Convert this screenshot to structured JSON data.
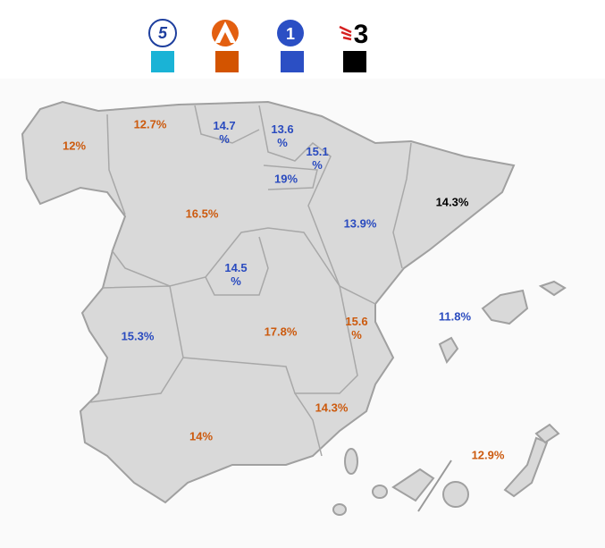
{
  "legend": {
    "items": [
      {
        "logo": "5",
        "color": "#1ab3d6"
      },
      {
        "color": "#d35400"
      },
      {
        "logo": "1",
        "color": "#2b4fc4"
      },
      {
        "logo": "3",
        "color": "#000000"
      }
    ]
  },
  "regions": [
    {
      "label": "12%",
      "color": "#cc5a0e"
    },
    {
      "label": "12.7%",
      "color": "#cc5a0e"
    },
    {
      "label": "14.7 %",
      "color": "#2a4bbf"
    },
    {
      "label": "13.6 %",
      "color": "#2a4bbf"
    },
    {
      "label": "15.1 %",
      "color": "#2a4bbf"
    },
    {
      "label": "19%",
      "color": "#2a4bbf"
    },
    {
      "label": "13.9%",
      "color": "#2a4bbf"
    },
    {
      "label": "14.3%",
      "color": "#000000"
    },
    {
      "label": "16.5%",
      "color": "#cc5a0e"
    },
    {
      "label": "14.5 %",
      "color": "#2a4bbf"
    },
    {
      "label": "15.3%",
      "color": "#2a4bbf"
    },
    {
      "label": "17.8%",
      "color": "#cc5a0e"
    },
    {
      "label": "15.6 %",
      "color": "#cc5a0e"
    },
    {
      "label": "11.8%",
      "color": "#2a4bbf"
    },
    {
      "label": "14.3%",
      "color": "#cc5a0e"
    },
    {
      "label": "14%",
      "color": "#cc5a0e"
    },
    {
      "label": "12.9%",
      "color": "#cc5a0e"
    }
  ]
}
